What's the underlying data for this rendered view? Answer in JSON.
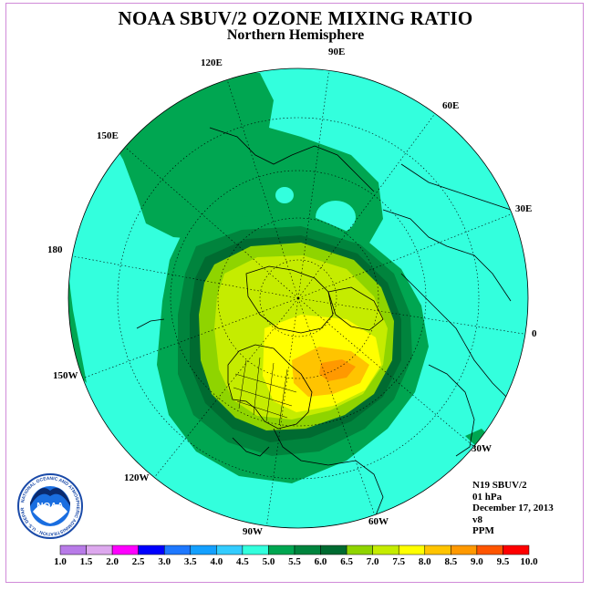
{
  "header": {
    "title": "NOAA SBUV/2 OZONE MIXING RATIO",
    "subtitle": "Northern Hemisphere"
  },
  "map": {
    "projection": "north-polar-stereographic",
    "longitude_labels": [
      "90E",
      "60E",
      "30E",
      "0",
      "30W",
      "60W",
      "90W",
      "120W",
      "150W",
      "180",
      "150E",
      "120E"
    ]
  },
  "info": {
    "instrument": "N19 SBUV/2",
    "level": "01 hPa",
    "date": "December 17, 2013",
    "version": "v8",
    "units": "PPM"
  },
  "logo": {
    "text": "NOAA",
    "ring_text": "NATIONAL OCEANIC AND ATMOSPHERIC ADMINISTRATION · U.S. DEPARTMENT OF COMMERCE"
  },
  "colorbar": {
    "ticks": [
      "1.0",
      "1.5",
      "2.0",
      "2.5",
      "3.0",
      "3.5",
      "4.0",
      "4.5",
      "5.0",
      "5.5",
      "6.0",
      "6.5",
      "7.0",
      "7.5",
      "8.0",
      "8.5",
      "9.0",
      "9.5",
      "10.0"
    ],
    "colors": [
      "#b87be8",
      "#dda8ee",
      "#ff00ff",
      "#0000ff",
      "#1e78ff",
      "#14a0ff",
      "#33ccff",
      "#33ffdd",
      "#00a651",
      "#00843d",
      "#006b31",
      "#8fd400",
      "#c5ec00",
      "#ffff00",
      "#ffc400",
      "#ff9900",
      "#ff5500",
      "#ff0000",
      "#8b5a3c"
    ]
  }
}
